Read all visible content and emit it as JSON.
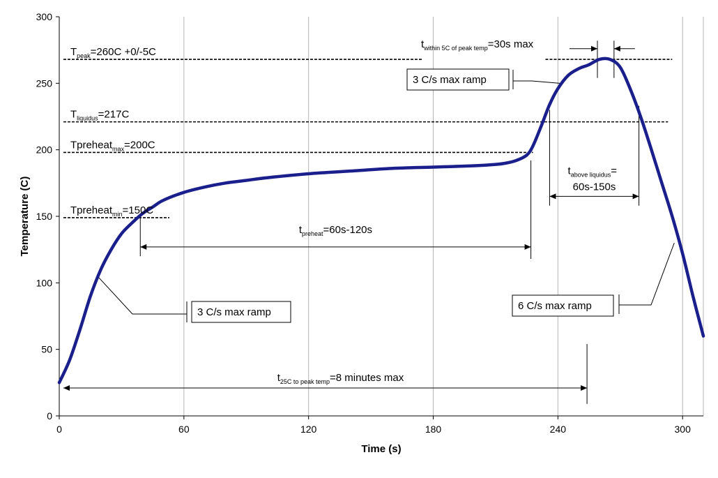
{
  "chart_data": {
    "type": "line",
    "xlabel": "Time (s)",
    "ylabel": "Temperature (C)",
    "xlim": [
      0,
      310
    ],
    "ylim": [
      0,
      300
    ],
    "x_ticks": [
      0,
      60,
      120,
      180,
      240,
      300
    ],
    "y_ticks": [
      0,
      50,
      100,
      150,
      200,
      250,
      300
    ],
    "grid": "vertical",
    "series": [
      {
        "color": "#1a1f8c",
        "x": [
          0,
          5,
          10,
          15,
          20,
          25,
          30,
          35,
          40,
          45,
          50,
          60,
          70,
          80,
          90,
          100,
          120,
          140,
          160,
          180,
          200,
          210,
          215,
          220,
          225,
          228,
          232,
          236,
          240,
          245,
          250,
          255,
          260,
          265,
          270,
          275,
          280,
          285,
          290,
          295,
          300,
          305,
          310
        ],
        "y": [
          25,
          42,
          65,
          90,
          110,
          125,
          137,
          145,
          152,
          157,
          162,
          168,
          172,
          175,
          177,
          179,
          182,
          184,
          186,
          187,
          188,
          189,
          190,
          192,
          196,
          203,
          218,
          234,
          246,
          256,
          261,
          264,
          268,
          268,
          262,
          245,
          224,
          200,
          175,
          150,
          122,
          90,
          60
        ]
      }
    ],
    "reference_lines": [
      {
        "y": 268,
        "x_from": 2,
        "x_to": 175,
        "label_main": "T",
        "label_sub": "peak",
        "label_rest": "=260C +0/-5C"
      },
      {
        "y": 268,
        "x_from": 234,
        "x_to": 295
      },
      {
        "y": 221,
        "x_from": 2,
        "x_to": 293,
        "label_main": "T",
        "label_sub": "liquidus",
        "label_rest": "=217C"
      },
      {
        "y": 198,
        "x_from": 2,
        "x_to": 228,
        "label_main": "Tpreheat",
        "label_sub": "max",
        "label_rest": "=200C"
      },
      {
        "y": 149,
        "x_from": 2,
        "x_to": 53,
        "label_main": "Tpreheat",
        "label_sub": "min",
        "label_rest": "=150C"
      }
    ],
    "annotations": {
      "t_preheat": {
        "main": "t",
        "sub": "preheat",
        "rest": "=60s-120s",
        "x_from": 39,
        "x_to": 227,
        "y": 127
      },
      "t_above_liquidus": {
        "main": "t",
        "sub": "above liquidus",
        "rest": "=",
        "line2": "60s-150s",
        "x_from": 236,
        "x_to": 279,
        "y": 165
      },
      "t_within_peak": {
        "main": "t",
        "sub": "within 5C of peak temp",
        "rest": "=30s max",
        "x_from": 259,
        "x_to": 267
      },
      "t_total": {
        "main": "t",
        "sub": "25C to peak temp",
        "rest": "=8 minutes max",
        "x_from": 2,
        "x_to": 254,
        "y": 21
      },
      "ramp_up_1": "3 C/s max ramp",
      "ramp_up_2": "3 C/s max ramp",
      "ramp_down": "6 C/s max ramp"
    }
  }
}
